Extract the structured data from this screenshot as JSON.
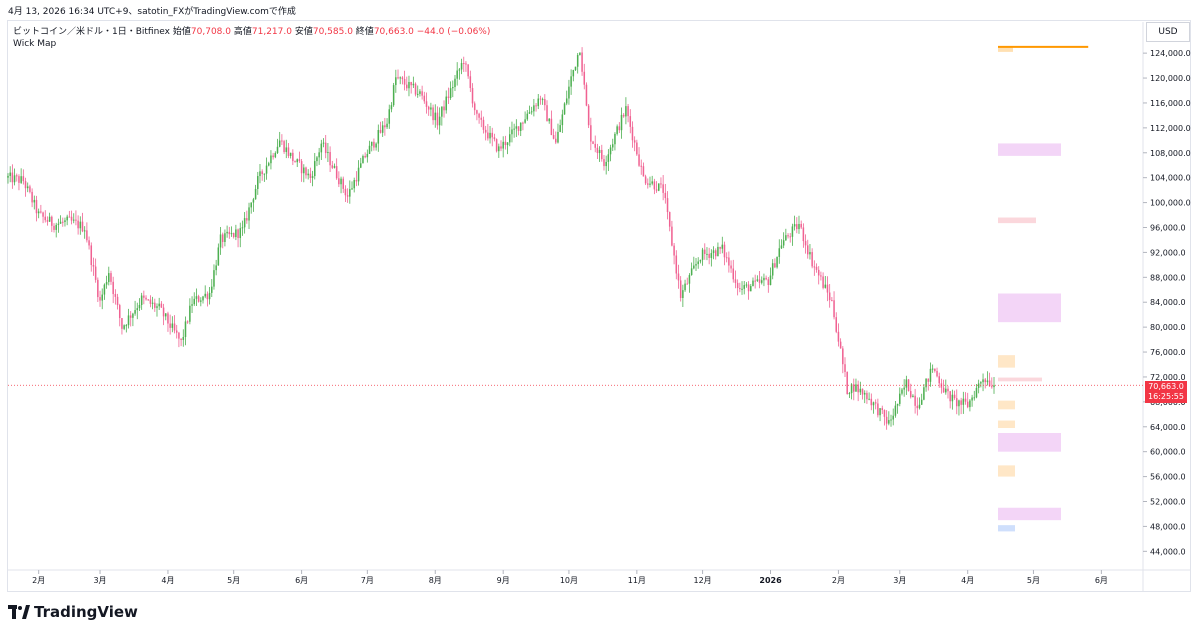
{
  "header": {
    "caption": "4月 13, 2026 16:34 UTC+9、satotin_FXがTradingView.comで作成"
  },
  "legend": {
    "symbol": "ビットコイン／米ドル・1日・Bitfinex",
    "open_label": "始値",
    "open_value": "70,708.0",
    "high_label": "高値",
    "high_value": "71,217.0",
    "low_label": "安値",
    "low_value": "70,585.0",
    "close_label": "終値",
    "close_value": "70,663.0",
    "change": "−44.0 (−0.06%)",
    "indicator": "Wick Map"
  },
  "currency_button": "USD",
  "last_price": {
    "price": "70,663.0",
    "countdown": "16:25:55"
  },
  "footer": {
    "brand": "TradingView"
  },
  "colors": {
    "up": "#26a69a",
    "up_candle": "#4caf50",
    "down": "#f06292",
    "price_line": "#f23645",
    "accent": "#ff9800"
  },
  "chart_data": {
    "type": "candlestick",
    "title": "ビットコイン／米ドル・1日・Bitfinex",
    "ylabel": "USD",
    "ylim": [
      41000,
      129000
    ],
    "y_ticks": [
      44000,
      48000,
      52000,
      56000,
      60000,
      64000,
      68000,
      72000,
      76000,
      80000,
      84000,
      88000,
      92000,
      96000,
      100000,
      104000,
      108000,
      112000,
      116000,
      120000,
      124000
    ],
    "y_tick_labels": [
      "44,000.0",
      "48,000.0",
      "52,000.0",
      "56,000.0",
      "60,000.0",
      "64,000.0",
      "68,000.0",
      "72,000.0",
      "76,000.0",
      "80,000.0",
      "84,000.0",
      "88,000.0",
      "92,000.0",
      "96,000.0",
      "100,000.0",
      "104,000.0",
      "108,000.0",
      "112,000.0",
      "116,000.0",
      "120,000.0",
      "124,000.0"
    ],
    "x_ticks": [
      {
        "label": "2月",
        "date": "2025-02-01"
      },
      {
        "label": "3月",
        "date": "2025-03-01"
      },
      {
        "label": "4月",
        "date": "2025-04-01"
      },
      {
        "label": "5月",
        "date": "2025-05-01"
      },
      {
        "label": "6月",
        "date": "2025-06-01"
      },
      {
        "label": "7月",
        "date": "2025-07-01"
      },
      {
        "label": "8月",
        "date": "2025-08-01"
      },
      {
        "label": "9月",
        "date": "2025-09-01"
      },
      {
        "label": "10月",
        "date": "2025-10-01"
      },
      {
        "label": "11月",
        "date": "2025-11-01"
      },
      {
        "label": "12月",
        "date": "2025-12-01"
      },
      {
        "label": "2026",
        "date": "2026-01-01"
      },
      {
        "label": "2月",
        "date": "2026-02-01"
      },
      {
        "label": "3月",
        "date": "2026-03-01"
      },
      {
        "label": "4月",
        "date": "2026-04-01"
      },
      {
        "label": "5月",
        "date": "2026-05-01"
      },
      {
        "label": "6月",
        "date": "2026-06-01"
      }
    ],
    "x_range": [
      "2025-01-18",
      "2026-06-20"
    ],
    "last_price": 70663,
    "trend": [
      [
        "2025-01-18",
        104000
      ],
      [
        "2025-01-25",
        103500
      ],
      [
        "2025-02-01",
        98000
      ],
      [
        "2025-02-08",
        96500
      ],
      [
        "2025-02-15",
        97000
      ],
      [
        "2025-02-22",
        96000
      ],
      [
        "2025-03-01",
        84000
      ],
      [
        "2025-03-05",
        89000
      ],
      [
        "2025-03-11",
        80000
      ],
      [
        "2025-03-20",
        84500
      ],
      [
        "2025-03-28",
        83000
      ],
      [
        "2025-04-07",
        77500
      ],
      [
        "2025-04-12",
        84000
      ],
      [
        "2025-04-20",
        85500
      ],
      [
        "2025-04-25",
        94000
      ],
      [
        "2025-05-05",
        95500
      ],
      [
        "2025-05-12",
        103500
      ],
      [
        "2025-05-22",
        110000
      ],
      [
        "2025-05-28",
        107000
      ],
      [
        "2025-06-05",
        104000
      ],
      [
        "2025-06-10",
        109500
      ],
      [
        "2025-06-22",
        101000
      ],
      [
        "2025-06-30",
        107500
      ],
      [
        "2025-07-10",
        113000
      ],
      [
        "2025-07-14",
        120000
      ],
      [
        "2025-07-25",
        117500
      ],
      [
        "2025-08-02",
        113000
      ],
      [
        "2025-08-14",
        123000
      ],
      [
        "2025-08-20",
        113500
      ],
      [
        "2025-08-30",
        108500
      ],
      [
        "2025-09-05",
        111000
      ],
      [
        "2025-09-18",
        117000
      ],
      [
        "2025-09-25",
        109500
      ],
      [
        "2025-10-02",
        120000
      ],
      [
        "2025-10-06",
        125000
      ],
      [
        "2025-10-10",
        112000
      ],
      [
        "2025-10-11",
        110500
      ],
      [
        "2025-10-17",
        106500
      ],
      [
        "2025-10-27",
        115000
      ],
      [
        "2025-11-04",
        104000
      ],
      [
        "2025-11-13",
        102000
      ],
      [
        "2025-11-21",
        85000
      ],
      [
        "2025-11-30",
        91500
      ],
      [
        "2025-12-10",
        92500
      ],
      [
        "2025-12-18",
        86000
      ],
      [
        "2025-12-31",
        87500
      ],
      [
        "2026-01-06",
        93500
      ],
      [
        "2026-01-14",
        96500
      ],
      [
        "2026-01-20",
        90500
      ],
      [
        "2026-01-29",
        84000
      ],
      [
        "2026-02-05",
        70000
      ],
      [
        "2026-02-08",
        70500
      ],
      [
        "2026-02-14",
        69000
      ],
      [
        "2026-02-24",
        64500
      ],
      [
        "2026-03-04",
        71000
      ],
      [
        "2026-03-09",
        67500
      ],
      [
        "2026-03-16",
        73500
      ],
      [
        "2026-03-22",
        69500
      ],
      [
        "2026-03-26",
        68000
      ],
      [
        "2026-04-01",
        67500
      ],
      [
        "2026-04-08",
        72000
      ],
      [
        "2026-04-13",
        70663
      ]
    ],
    "annotations": {
      "orange_line": {
        "price": 125000,
        "from": "2026-04-13",
        "to": "2026-05-26"
      },
      "zones": [
        {
          "low": 124200,
          "high": 125000,
          "color": "#ffe0b2"
        },
        {
          "low": 107500,
          "high": 109500,
          "color": "#f3d5f7"
        },
        {
          "low": 96700,
          "high": 97600,
          "color": "#fbd7dc"
        },
        {
          "low": 80800,
          "high": 85400,
          "color": "#f3d5f7"
        },
        {
          "low": 73500,
          "high": 75500,
          "color": "#ffe7c7"
        },
        {
          "low": 71300,
          "high": 71900,
          "color": "#fbd7dc"
        },
        {
          "low": 66800,
          "high": 68200,
          "color": "#ffe7c7"
        },
        {
          "low": 63800,
          "high": 65000,
          "color": "#ffe7c7"
        },
        {
          "low": 60000,
          "high": 63000,
          "color": "#f3d5f7"
        },
        {
          "low": 56000,
          "high": 57800,
          "color": "#ffe7c7"
        },
        {
          "low": 49000,
          "high": 51000,
          "color": "#f3d5f7"
        },
        {
          "low": 47200,
          "high": 48200,
          "color": "#cfdffc"
        }
      ]
    }
  }
}
